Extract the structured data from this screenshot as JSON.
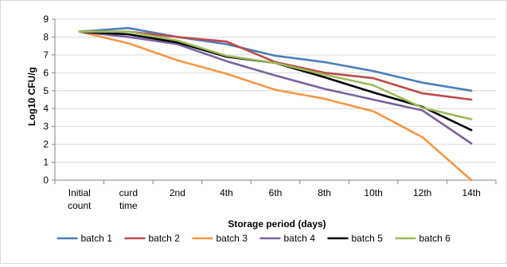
{
  "chart_data": {
    "type": "line",
    "xlabel": "Storage period (days)",
    "ylabel": "Log10 CFU/g",
    "ylim": [
      0,
      9
    ],
    "ytick_step": 1,
    "grid": true,
    "legend_position": "bottom",
    "categories": [
      "Initial count",
      "curd time",
      "2nd",
      "4th",
      "6th",
      "8th",
      "10th",
      "12th",
      "14th"
    ],
    "series": [
      {
        "name": "batch 1",
        "color": "#4a7ebb",
        "values": [
          8.3,
          8.5,
          8.0,
          7.6,
          6.95,
          6.6,
          6.1,
          5.45,
          5.0
        ]
      },
      {
        "name": "batch 2",
        "color": "#be4b48",
        "values": [
          8.3,
          8.3,
          8.0,
          7.75,
          6.6,
          6.0,
          5.7,
          4.85,
          4.5
        ]
      },
      {
        "name": "batch 3",
        "color": "#f79646",
        "values": [
          8.3,
          7.65,
          6.7,
          5.95,
          5.05,
          4.55,
          3.85,
          2.4,
          0.0
        ]
      },
      {
        "name": "batch 4",
        "color": "#7d60a0",
        "values": [
          8.3,
          8.0,
          7.6,
          6.65,
          5.85,
          5.1,
          4.5,
          3.9,
          2.05
        ]
      },
      {
        "name": "batch 5",
        "color": "#000000",
        "values": [
          8.3,
          8.15,
          7.7,
          6.9,
          6.55,
          5.75,
          4.9,
          4.1,
          2.8
        ]
      },
      {
        "name": "batch 6",
        "color": "#9bbb59",
        "values": [
          8.3,
          8.3,
          7.8,
          6.95,
          6.55,
          5.9,
          5.3,
          4.05,
          3.4
        ]
      }
    ]
  }
}
